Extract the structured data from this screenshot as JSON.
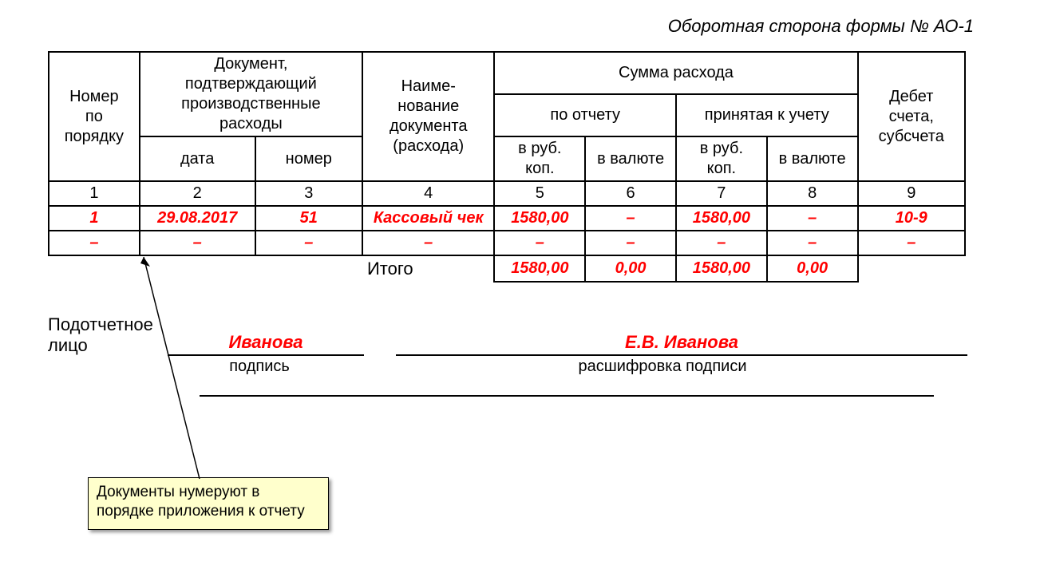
{
  "form_title": "Оборотная сторона формы № АО-1",
  "headers": {
    "num": "Номер\nпо\nпорядку",
    "doc": "Документ,\nподтверждающий\nпроизводственные\nрасходы",
    "doc_date": "дата",
    "doc_no": "номер",
    "name": "Наиме-\nнование\nдокумента\n(расхода)",
    "sum": "Сумма расхода",
    "sum_report": "по отчету",
    "sum_accept": "принятая к учету",
    "rub": "в руб.\nкоп.",
    "val": "в валюте",
    "debit": "Дебет\nсчета,\nсубсчета"
  },
  "colnums": [
    "1",
    "2",
    "3",
    "4",
    "5",
    "6",
    "7",
    "8",
    "9"
  ],
  "rows": [
    {
      "n": "1",
      "date": "29.08.2017",
      "docno": "51",
      "name": "Кассовый чек",
      "r5": "1580,00",
      "r6": "–",
      "r7": "1580,00",
      "r8": "–",
      "r9": "10-9"
    },
    {
      "n": "–",
      "date": "–",
      "docno": "–",
      "name": "–",
      "r5": "–",
      "r6": "–",
      "r7": "–",
      "r8": "–",
      "r9": "–"
    }
  ],
  "totals": {
    "label": "Итого",
    "r5": "1580,00",
    "r6": "0,00",
    "r7": "1580,00",
    "r8": "0,00"
  },
  "signature": {
    "label": "Подотчетное лицо",
    "sign_value": "Иванова",
    "sign_caption": "подпись",
    "decode_value": "Е.В. Иванова",
    "decode_caption": "расшифровка подписи"
  },
  "note": "Документы нумеруют в порядке приложения к отчету",
  "colors": {
    "value": "#ff0000",
    "note_bg": "#ffffcc",
    "border": "#000000",
    "bg": "#ffffff"
  }
}
